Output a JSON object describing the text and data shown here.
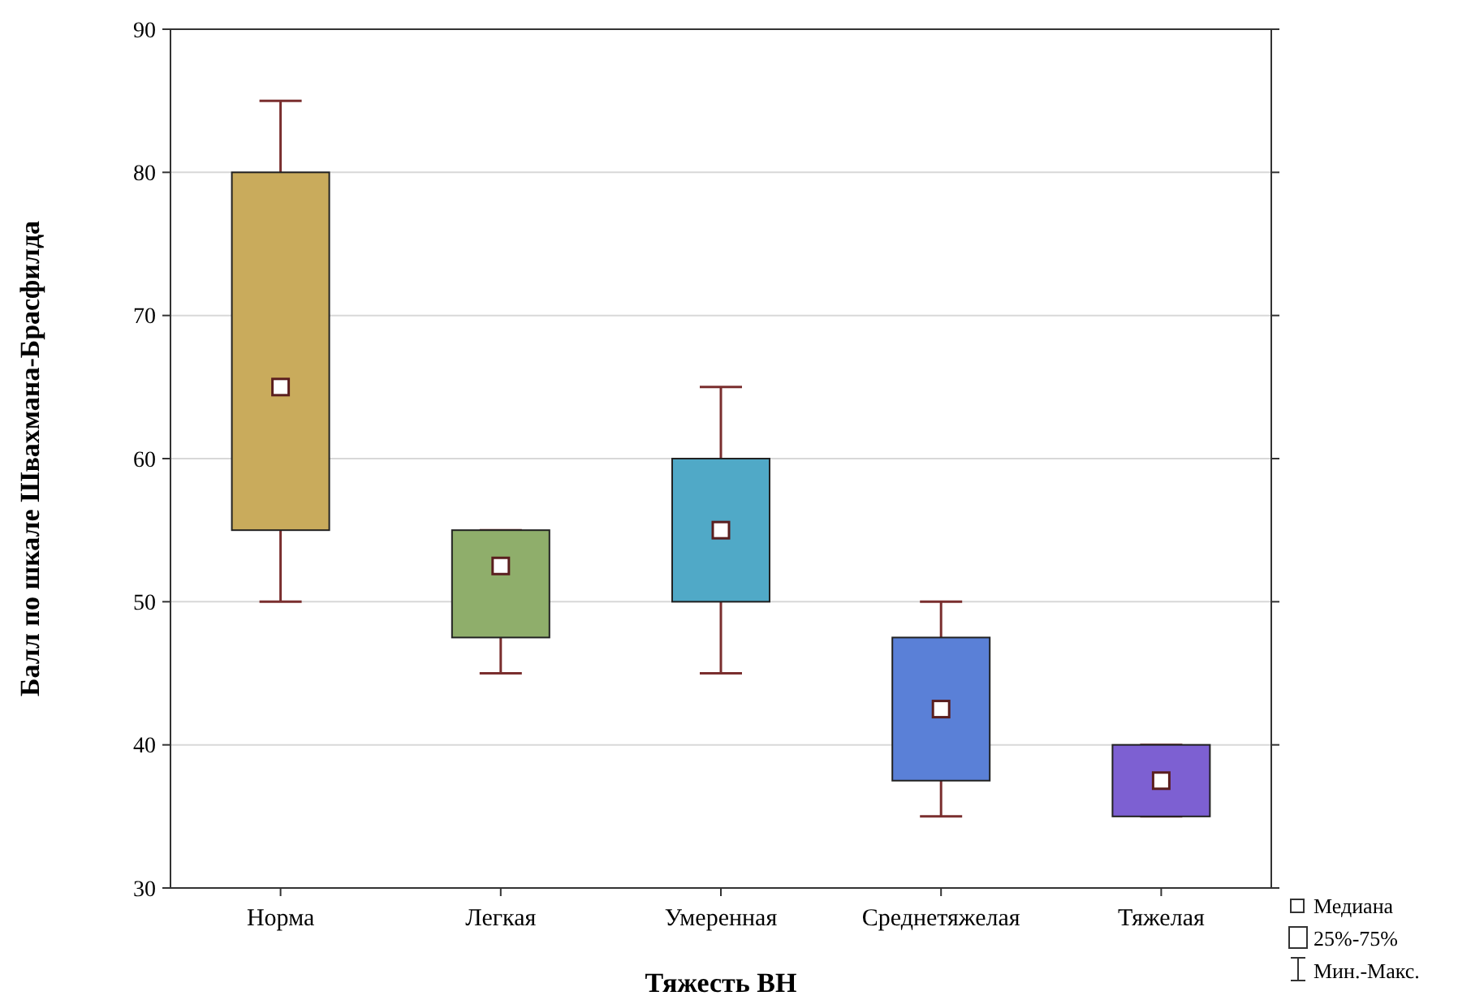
{
  "chart_data": {
    "type": "box",
    "xlabel": "Тяжесть ВН",
    "ylabel": "Балл по шкале Швахмана-Брасфилда",
    "categories": [
      "Норма",
      "Легкая",
      "Умеренная",
      "Среднетяжелая",
      "Тяжелая"
    ],
    "boxes": [
      {
        "low": 50,
        "q1": 55,
        "median": 65,
        "q3": 80,
        "high": 85
      },
      {
        "low": 45,
        "q1": 47.5,
        "median": 52.5,
        "q3": 55,
        "high": 55
      },
      {
        "low": 45,
        "q1": 50,
        "median": 55,
        "q3": 60,
        "high": 65
      },
      {
        "low": 35,
        "q1": 37.5,
        "median": 42.5,
        "q3": 47.5,
        "high": 50
      },
      {
        "low": 35,
        "q1": 35,
        "median": 37.5,
        "q3": 40,
        "high": 40
      }
    ],
    "colors": [
      "#c9ab5c",
      "#8fae6b",
      "#50a9c7",
      "#5a80d7",
      "#7d60d2"
    ],
    "ylim": [
      30,
      90
    ],
    "yticks": [
      30,
      40,
      50,
      60,
      70,
      80,
      90
    ],
    "grid": "y",
    "annotations": [
      "Медиана",
      "25%-75%",
      "Мин.-Макс."
    ]
  }
}
